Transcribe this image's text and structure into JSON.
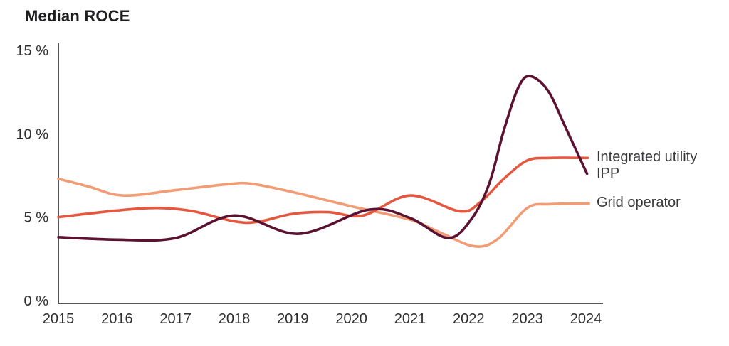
{
  "title": "Median ROCE",
  "chart_data": {
    "type": "line",
    "title": "Median ROCE",
    "unit": "%",
    "categories": [
      2015,
      2016,
      2017,
      2018,
      2019,
      2020,
      2021,
      2022,
      2023,
      2024
    ],
    "x_tick_labels": [
      "2015",
      "2016",
      "2017",
      "2018",
      "2019",
      "2020",
      "2021",
      "2022",
      "2023",
      "2024"
    ],
    "y_ticks": [
      0,
      5,
      10,
      15
    ],
    "y_tick_labels": [
      "0 %",
      "5 %",
      "10 %",
      "15 %"
    ],
    "xlim": [
      2015,
      2024
    ],
    "ylim": [
      0,
      15
    ],
    "grid": false,
    "legend_position": "right of line ends",
    "axis_color": "#55565a",
    "text_color": "#2e2e31",
    "series": [
      {
        "name": "Integrated utility",
        "slug": "integrated-utility",
        "color": "#e5573f",
        "values": [
          5.0,
          5.4,
          5.5,
          4.8,
          5.2,
          5.2,
          6.3,
          5.5,
          8.4,
          8.5
        ],
        "curve_points": [
          [
            2015,
            5.0
          ],
          [
            2016,
            5.4
          ],
          [
            2016.7,
            5.55
          ],
          [
            2017.3,
            5.35
          ],
          [
            2018,
            4.75
          ],
          [
            2018.4,
            4.72
          ],
          [
            2019,
            5.2
          ],
          [
            2019.6,
            5.3
          ],
          [
            2020.2,
            5.1
          ],
          [
            2021,
            6.3
          ],
          [
            2021.85,
            5.35
          ],
          [
            2022.2,
            5.9
          ],
          [
            2022.6,
            7.3
          ],
          [
            2023,
            8.4
          ],
          [
            2023.4,
            8.55
          ],
          [
            2024.03,
            8.55
          ]
        ]
      },
      {
        "name": "IPP",
        "slug": "ipp",
        "color": "#5b1230",
        "values": [
          3.8,
          3.7,
          3.8,
          5.1,
          4.1,
          5.4,
          5.0,
          4.8,
          13.4,
          7.6
        ],
        "curve_points": [
          [
            2015,
            3.8
          ],
          [
            2016,
            3.65
          ],
          [
            2017,
            3.75
          ],
          [
            2018,
            5.1
          ],
          [
            2019.1,
            4.0
          ],
          [
            2020.3,
            5.45
          ],
          [
            2021,
            4.95
          ],
          [
            2021.65,
            3.75
          ],
          [
            2022.05,
            4.9
          ],
          [
            2022.35,
            7.0
          ],
          [
            2022.6,
            10.2
          ],
          [
            2022.85,
            12.8
          ],
          [
            2023.05,
            13.45
          ],
          [
            2023.35,
            12.6
          ],
          [
            2023.65,
            10.4
          ],
          [
            2024.02,
            7.6
          ]
        ]
      },
      {
        "name": "Grid operator",
        "slug": "grid-operator",
        "color": "#f19c74",
        "values": [
          7.3,
          6.3,
          6.6,
          7.0,
          6.5,
          5.7,
          4.9,
          3.3,
          5.6,
          5.8
        ],
        "curve_points": [
          [
            2015,
            7.3
          ],
          [
            2015.5,
            6.85
          ],
          [
            2016.1,
            6.3
          ],
          [
            2017,
            6.62
          ],
          [
            2017.9,
            6.98
          ],
          [
            2018.3,
            7.0
          ],
          [
            2019,
            6.5
          ],
          [
            2020,
            5.65
          ],
          [
            2021,
            4.85
          ],
          [
            2021.5,
            4.1
          ],
          [
            2022.1,
            3.25
          ],
          [
            2022.5,
            3.7
          ],
          [
            2023,
            5.55
          ],
          [
            2023.4,
            5.78
          ],
          [
            2024.05,
            5.82
          ]
        ]
      }
    ]
  }
}
